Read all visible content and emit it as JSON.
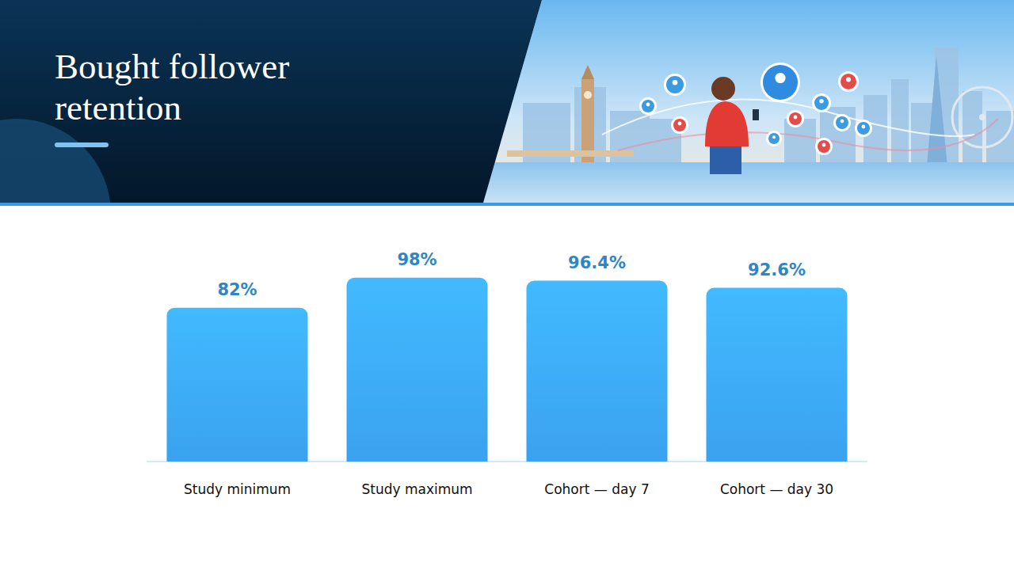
{
  "chart_data": {
    "type": "bar",
    "title": "Bought follower retention",
    "categories": [
      "Study minimum",
      "Study maximum",
      "Cohort — day 7",
      "Cohort — day 30"
    ],
    "values": [
      82,
      98,
      96.4,
      92.6
    ],
    "value_labels": [
      "82%",
      "98%",
      "96.4%",
      "92.6%"
    ],
    "color": "#3aa2f0",
    "ylim": [
      0,
      100
    ],
    "data_labels": true,
    "tick_labels": "x",
    "grid": false
  }
}
